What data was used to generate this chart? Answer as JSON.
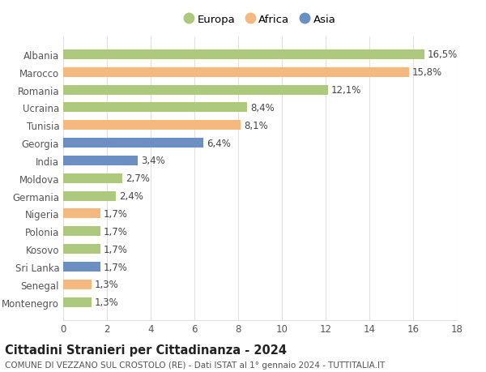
{
  "countries": [
    "Albania",
    "Marocco",
    "Romania",
    "Ucraina",
    "Tunisia",
    "Georgia",
    "India",
    "Moldova",
    "Germania",
    "Nigeria",
    "Polonia",
    "Kosovo",
    "Sri Lanka",
    "Senegal",
    "Montenegro"
  ],
  "values": [
    16.5,
    15.8,
    12.1,
    8.4,
    8.1,
    6.4,
    3.4,
    2.7,
    2.4,
    1.7,
    1.7,
    1.7,
    1.7,
    1.3,
    1.3
  ],
  "continents": [
    "Europa",
    "Africa",
    "Europa",
    "Europa",
    "Africa",
    "Asia",
    "Asia",
    "Europa",
    "Europa",
    "Africa",
    "Europa",
    "Europa",
    "Asia",
    "Africa",
    "Europa"
  ],
  "colors": {
    "Europa": "#adc97e",
    "Africa": "#f5b97f",
    "Asia": "#6b8fc2"
  },
  "xlim": [
    0,
    18
  ],
  "xticks": [
    0,
    2,
    4,
    6,
    8,
    10,
    12,
    14,
    16,
    18
  ],
  "title": "Cittadini Stranieri per Cittadinanza - 2024",
  "subtitle": "COMUNE DI VEZZANO SUL CROSTOLO (RE) - Dati ISTAT al 1° gennaio 2024 - TUTTITALIA.IT",
  "background_color": "#ffffff",
  "grid_color": "#e0e0e0",
  "bar_height": 0.55,
  "label_fontsize": 8.5,
  "value_fontsize": 8.5,
  "title_fontsize": 10.5,
  "subtitle_fontsize": 7.5
}
